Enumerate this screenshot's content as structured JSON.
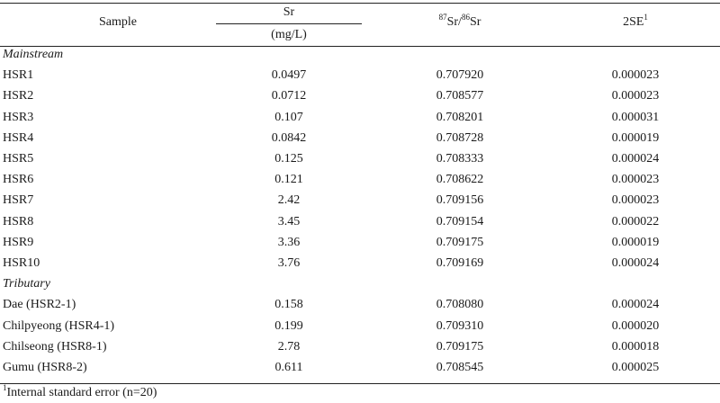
{
  "header": {
    "sample": "Sample",
    "sr": "Sr",
    "sr_unit": "(mg/L)",
    "ratio_sup1": "87",
    "ratio_mid": "Sr/",
    "ratio_sup2": "86",
    "ratio_end": "Sr",
    "se": "2SE",
    "se_sup": "1"
  },
  "sections": [
    {
      "title": "Mainstream",
      "rows": [
        {
          "sample": "HSR1",
          "sr": "0.0497",
          "ratio": "0.707920",
          "se": "0.000023"
        },
        {
          "sample": "HSR2",
          "sr": "0.0712",
          "ratio": "0.708577",
          "se": "0.000023"
        },
        {
          "sample": "HSR3",
          "sr": "0.107",
          "ratio": "0.708201",
          "se": "0.000031"
        },
        {
          "sample": "HSR4",
          "sr": "0.0842",
          "ratio": "0.708728",
          "se": "0.000019"
        },
        {
          "sample": "HSR5",
          "sr": "0.125",
          "ratio": "0.708333",
          "se": "0.000024"
        },
        {
          "sample": "HSR6",
          "sr": "0.121",
          "ratio": "0.708622",
          "se": "0.000023"
        },
        {
          "sample": "HSR7",
          "sr": "2.42",
          "ratio": "0.709156",
          "se": "0.000023"
        },
        {
          "sample": "HSR8",
          "sr": "3.45",
          "ratio": "0.709154",
          "se": "0.000022"
        },
        {
          "sample": "HSR9",
          "sr": "3.36",
          "ratio": "0.709175",
          "se": "0.000019"
        },
        {
          "sample": "HSR10",
          "sr": "3.76",
          "ratio": "0.709169",
          "se": "0.000024"
        }
      ]
    },
    {
      "title": "Tributary",
      "rows": [
        {
          "sample": "Dae (HSR2-1)",
          "sr": "0.158",
          "ratio": "0.708080",
          "se": "0.000024"
        },
        {
          "sample": "Chilpyeong (HSR4-1)",
          "sr": "0.199",
          "ratio": "0.709310",
          "se": "0.000020"
        },
        {
          "sample": "Chilseong (HSR8-1)",
          "sr": "2.78",
          "ratio": "0.709175",
          "se": "0.000018"
        },
        {
          "sample": "Gumu (HSR8-2)",
          "sr": "0.611",
          "ratio": "0.708545",
          "se": "0.000025"
        }
      ]
    }
  ],
  "footnote": {
    "sup": "1",
    "text": "Internal standard error (n=20)"
  }
}
